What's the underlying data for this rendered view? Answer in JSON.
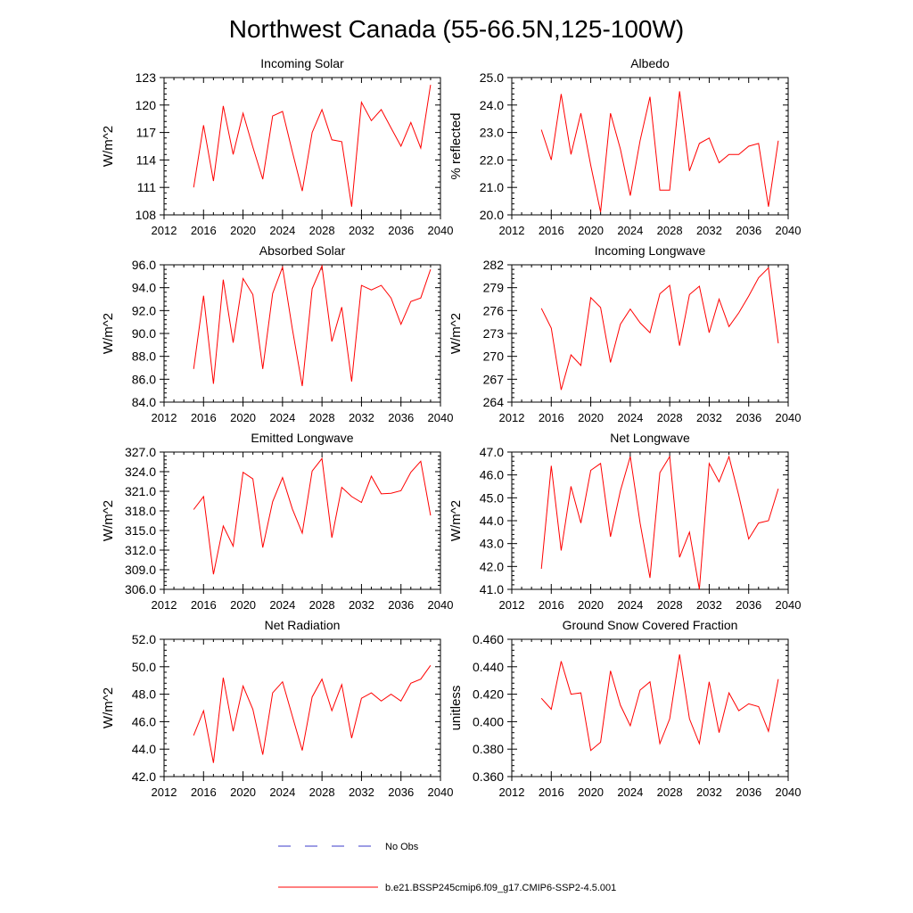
{
  "figure": {
    "title": "Northwest Canada (55-66.5N,125-100W)"
  },
  "legend": {
    "entries": [
      {
        "label": "No Obs",
        "style": "dashed",
        "color": "#3b3bc8"
      },
      {
        "label": "b.e21.BSSP245cmip6.f09_g17.CMIP6-SSP2-4.5.001",
        "style": "solid",
        "color": "#ff0000"
      }
    ]
  },
  "chart_data": [
    {
      "type": "line",
      "title": "Incoming Solar",
      "ylabel": "W/m^2",
      "xlim": [
        2012,
        2040
      ],
      "ylim": [
        108,
        123
      ],
      "xticks": [
        2012,
        2016,
        2020,
        2024,
        2028,
        2032,
        2036,
        2040
      ],
      "xticklabels": [
        "2012",
        "2016",
        "2020",
        "2024",
        "2028",
        "2032",
        "2036",
        "2040"
      ],
      "yticks": [
        108,
        111,
        114,
        117,
        120,
        123
      ],
      "yticklabels": [
        "108",
        "111",
        "114",
        "117",
        "120",
        "123"
      ],
      "x": [
        2015,
        2016,
        2017,
        2018,
        2019,
        2020,
        2021,
        2022,
        2023,
        2024,
        2025,
        2026,
        2027,
        2028,
        2029,
        2030,
        2031,
        2032,
        2033,
        2034,
        2035,
        2036,
        2037,
        2038,
        2039
      ],
      "series": [
        {
          "name": "b.e21.BSSP245cmip6.f09_g17.CMIP6-SSP2-4.5.001",
          "color": "#ff0000",
          "values": [
            111.0,
            117.8,
            111.7,
            119.9,
            114.6,
            119.1,
            115.4,
            111.9,
            118.8,
            119.3,
            114.9,
            110.6,
            117.0,
            119.5,
            116.2,
            116.0,
            108.9,
            120.3,
            118.3,
            119.5,
            117.5,
            115.5,
            118.1,
            115.3,
            122.2
          ]
        }
      ]
    },
    {
      "type": "line",
      "title": "Albedo",
      "ylabel": "% reflected",
      "xlim": [
        2012,
        2040
      ],
      "ylim": [
        20.0,
        25.0
      ],
      "xticks": [
        2012,
        2016,
        2020,
        2024,
        2028,
        2032,
        2036,
        2040
      ],
      "xticklabels": [
        "2012",
        "2016",
        "2020",
        "2024",
        "2028",
        "2032",
        "2036",
        "2040"
      ],
      "yticks": [
        20.0,
        21.0,
        22.0,
        23.0,
        24.0,
        25.0
      ],
      "yticklabels": [
        "20.0",
        "21.0",
        "22.0",
        "23.0",
        "24.0",
        "25.0"
      ],
      "x": [
        2015,
        2016,
        2017,
        2018,
        2019,
        2020,
        2021,
        2022,
        2023,
        2024,
        2025,
        2026,
        2027,
        2028,
        2029,
        2030,
        2031,
        2032,
        2033,
        2034,
        2035,
        2036,
        2037,
        2038,
        2039
      ],
      "series": [
        {
          "name": "b.e21.BSSP245cmip6.f09_g17.CMIP6-SSP2-4.5.001",
          "color": "#ff0000",
          "values": [
            23.1,
            22.0,
            24.4,
            22.2,
            23.7,
            21.8,
            20.1,
            23.7,
            22.4,
            20.7,
            22.7,
            24.3,
            20.9,
            20.9,
            24.5,
            21.6,
            22.6,
            22.8,
            21.9,
            22.2,
            22.2,
            22.5,
            22.6,
            20.3,
            22.7
          ]
        }
      ]
    },
    {
      "type": "line",
      "title": "Absorbed Solar",
      "ylabel": "W/m^2",
      "xlim": [
        2012,
        2040
      ],
      "ylim": [
        84.0,
        96.0
      ],
      "xticks": [
        2012,
        2016,
        2020,
        2024,
        2028,
        2032,
        2036,
        2040
      ],
      "xticklabels": [
        "2012",
        "2016",
        "2020",
        "2024",
        "2028",
        "2032",
        "2036",
        "2040"
      ],
      "yticks": [
        84.0,
        86.0,
        88.0,
        90.0,
        92.0,
        94.0,
        96.0
      ],
      "yticklabels": [
        "84.0",
        "86.0",
        "88.0",
        "90.0",
        "92.0",
        "94.0",
        "96.0"
      ],
      "x": [
        2015,
        2016,
        2017,
        2018,
        2019,
        2020,
        2021,
        2022,
        2023,
        2024,
        2025,
        2026,
        2027,
        2028,
        2029,
        2030,
        2031,
        2032,
        2033,
        2034,
        2035,
        2036,
        2037,
        2038,
        2039
      ],
      "series": [
        {
          "name": "b.e21.BSSP245cmip6.f09_g17.CMIP6-SSP2-4.5.001",
          "color": "#ff0000",
          "values": [
            86.9,
            93.3,
            85.6,
            94.7,
            89.2,
            94.8,
            93.4,
            86.9,
            93.5,
            95.8,
            90.4,
            85.4,
            93.9,
            95.9,
            89.3,
            92.3,
            85.8,
            94.2,
            93.8,
            94.2,
            93.1,
            90.8,
            92.8,
            93.1,
            95.6
          ]
        }
      ]
    },
    {
      "type": "line",
      "title": "Incoming Longwave",
      "ylabel": "W/m^2",
      "xlim": [
        2012,
        2040
      ],
      "ylim": [
        264,
        282
      ],
      "xticks": [
        2012,
        2016,
        2020,
        2024,
        2028,
        2032,
        2036,
        2040
      ],
      "xticklabels": [
        "2012",
        "2016",
        "2020",
        "2024",
        "2028",
        "2032",
        "2036",
        "2040"
      ],
      "yticks": [
        264,
        267,
        270,
        273,
        276,
        279,
        282
      ],
      "yticklabels": [
        "264",
        "267",
        "270",
        "273",
        "276",
        "279",
        "282"
      ],
      "x": [
        2015,
        2016,
        2017,
        2018,
        2019,
        2020,
        2021,
        2022,
        2023,
        2024,
        2025,
        2026,
        2027,
        2028,
        2029,
        2030,
        2031,
        2032,
        2033,
        2034,
        2035,
        2036,
        2037,
        2038,
        2039
      ],
      "series": [
        {
          "name": "b.e21.BSSP245cmip6.f09_g17.CMIP6-SSP2-4.5.001",
          "color": "#ff0000",
          "values": [
            276.3,
            273.7,
            265.6,
            270.2,
            268.8,
            277.7,
            276.4,
            269.2,
            274.2,
            276.2,
            274.4,
            273.1,
            278.2,
            279.3,
            271.4,
            278.1,
            279.2,
            273.1,
            277.5,
            273.9,
            275.7,
            277.9,
            280.3,
            281.6,
            271.7
          ]
        }
      ]
    },
    {
      "type": "line",
      "title": "Emitted Longwave",
      "ylabel": "W/m^2",
      "xlim": [
        2012,
        2040
      ],
      "ylim": [
        306.0,
        327.0
      ],
      "xticks": [
        2012,
        2016,
        2020,
        2024,
        2028,
        2032,
        2036,
        2040
      ],
      "xticklabels": [
        "2012",
        "2016",
        "2020",
        "2024",
        "2028",
        "2032",
        "2036",
        "2040"
      ],
      "yticks": [
        306.0,
        309.0,
        312.0,
        315.0,
        318.0,
        321.0,
        324.0,
        327.0
      ],
      "yticklabels": [
        "306.0",
        "309.0",
        "312.0",
        "315.0",
        "318.0",
        "321.0",
        "324.0",
        "327.0"
      ],
      "x": [
        2015,
        2016,
        2017,
        2018,
        2019,
        2020,
        2021,
        2022,
        2023,
        2024,
        2025,
        2026,
        2027,
        2028,
        2029,
        2030,
        2031,
        2032,
        2033,
        2034,
        2035,
        2036,
        2037,
        2038,
        2039
      ],
      "series": [
        {
          "name": "b.e21.BSSP245cmip6.f09_g17.CMIP6-SSP2-4.5.001",
          "color": "#ff0000",
          "values": [
            318.2,
            320.2,
            308.3,
            315.7,
            312.6,
            323.9,
            322.9,
            312.4,
            319.4,
            323.1,
            318.3,
            314.6,
            324.1,
            326.0,
            313.9,
            321.6,
            320.2,
            319.3,
            323.3,
            320.6,
            320.7,
            321.1,
            323.9,
            325.6,
            317.3
          ]
        }
      ]
    },
    {
      "type": "line",
      "title": "Net Longwave",
      "ylabel": "W/m^2",
      "xlim": [
        2012,
        2040
      ],
      "ylim": [
        41.0,
        47.0
      ],
      "xticks": [
        2012,
        2016,
        2020,
        2024,
        2028,
        2032,
        2036,
        2040
      ],
      "xticklabels": [
        "2012",
        "2016",
        "2020",
        "2024",
        "2028",
        "2032",
        "2036",
        "2040"
      ],
      "yticks": [
        41.0,
        42.0,
        43.0,
        44.0,
        45.0,
        46.0,
        47.0
      ],
      "yticklabels": [
        "41.0",
        "42.0",
        "43.0",
        "44.0",
        "45.0",
        "46.0",
        "47.0"
      ],
      "x": [
        2015,
        2016,
        2017,
        2018,
        2019,
        2020,
        2021,
        2022,
        2023,
        2024,
        2025,
        2026,
        2027,
        2028,
        2029,
        2030,
        2031,
        2032,
        2033,
        2034,
        2035,
        2036,
        2037,
        2038,
        2039
      ],
      "series": [
        {
          "name": "b.e21.BSSP245cmip6.f09_g17.CMIP6-SSP2-4.5.001",
          "color": "#ff0000",
          "values": [
            41.9,
            46.4,
            42.7,
            45.5,
            43.9,
            46.2,
            46.5,
            43.3,
            45.3,
            46.8,
            43.9,
            41.5,
            46.1,
            46.8,
            42.4,
            43.5,
            41.0,
            46.5,
            45.7,
            46.8,
            45.1,
            43.2,
            43.9,
            44.0,
            45.4
          ]
        }
      ]
    },
    {
      "type": "line",
      "title": "Net Radiation",
      "ylabel": "W/m^2",
      "xlim": [
        2012,
        2040
      ],
      "ylim": [
        42.0,
        52.0
      ],
      "xticks": [
        2012,
        2016,
        2020,
        2024,
        2028,
        2032,
        2036,
        2040
      ],
      "xticklabels": [
        "2012",
        "2016",
        "2020",
        "2024",
        "2028",
        "2032",
        "2036",
        "2040"
      ],
      "yticks": [
        42.0,
        44.0,
        46.0,
        48.0,
        50.0,
        52.0
      ],
      "yticklabels": [
        "42.0",
        "44.0",
        "46.0",
        "48.0",
        "50.0",
        "52.0"
      ],
      "x": [
        2015,
        2016,
        2017,
        2018,
        2019,
        2020,
        2021,
        2022,
        2023,
        2024,
        2025,
        2026,
        2027,
        2028,
        2029,
        2030,
        2031,
        2032,
        2033,
        2034,
        2035,
        2036,
        2037,
        2038,
        2039
      ],
      "series": [
        {
          "name": "b.e21.BSSP245cmip6.f09_g17.CMIP6-SSP2-4.5.001",
          "color": "#ff0000",
          "values": [
            45.0,
            46.8,
            43.0,
            49.2,
            45.3,
            48.6,
            46.9,
            43.6,
            48.1,
            48.9,
            46.4,
            43.9,
            47.8,
            49.1,
            46.8,
            48.7,
            44.8,
            47.7,
            48.1,
            47.5,
            48.0,
            47.5,
            48.8,
            49.1,
            50.1
          ]
        }
      ]
    },
    {
      "type": "line",
      "title": "Ground Snow Covered Fraction",
      "ylabel": "unitless",
      "xlim": [
        2012,
        2040
      ],
      "ylim": [
        0.36,
        0.46
      ],
      "xticks": [
        2012,
        2016,
        2020,
        2024,
        2028,
        2032,
        2036,
        2040
      ],
      "xticklabels": [
        "2012",
        "2016",
        "2020",
        "2024",
        "2028",
        "2032",
        "2036",
        "2040"
      ],
      "yticks": [
        0.36,
        0.38,
        0.4,
        0.42,
        0.44,
        0.46
      ],
      "yticklabels": [
        "0.360",
        "0.380",
        "0.400",
        "0.420",
        "0.440",
        "0.460"
      ],
      "x": [
        2015,
        2016,
        2017,
        2018,
        2019,
        2020,
        2021,
        2022,
        2023,
        2024,
        2025,
        2026,
        2027,
        2028,
        2029,
        2030,
        2031,
        2032,
        2033,
        2034,
        2035,
        2036,
        2037,
        2038,
        2039
      ],
      "series": [
        {
          "name": "b.e21.BSSP245cmip6.f09_g17.CMIP6-SSP2-4.5.001",
          "color": "#ff0000",
          "values": [
            0.417,
            0.409,
            0.444,
            0.42,
            0.421,
            0.379,
            0.385,
            0.437,
            0.412,
            0.397,
            0.423,
            0.429,
            0.384,
            0.402,
            0.449,
            0.402,
            0.384,
            0.429,
            0.392,
            0.421,
            0.408,
            0.413,
            0.411,
            0.393,
            0.431
          ]
        }
      ]
    }
  ]
}
